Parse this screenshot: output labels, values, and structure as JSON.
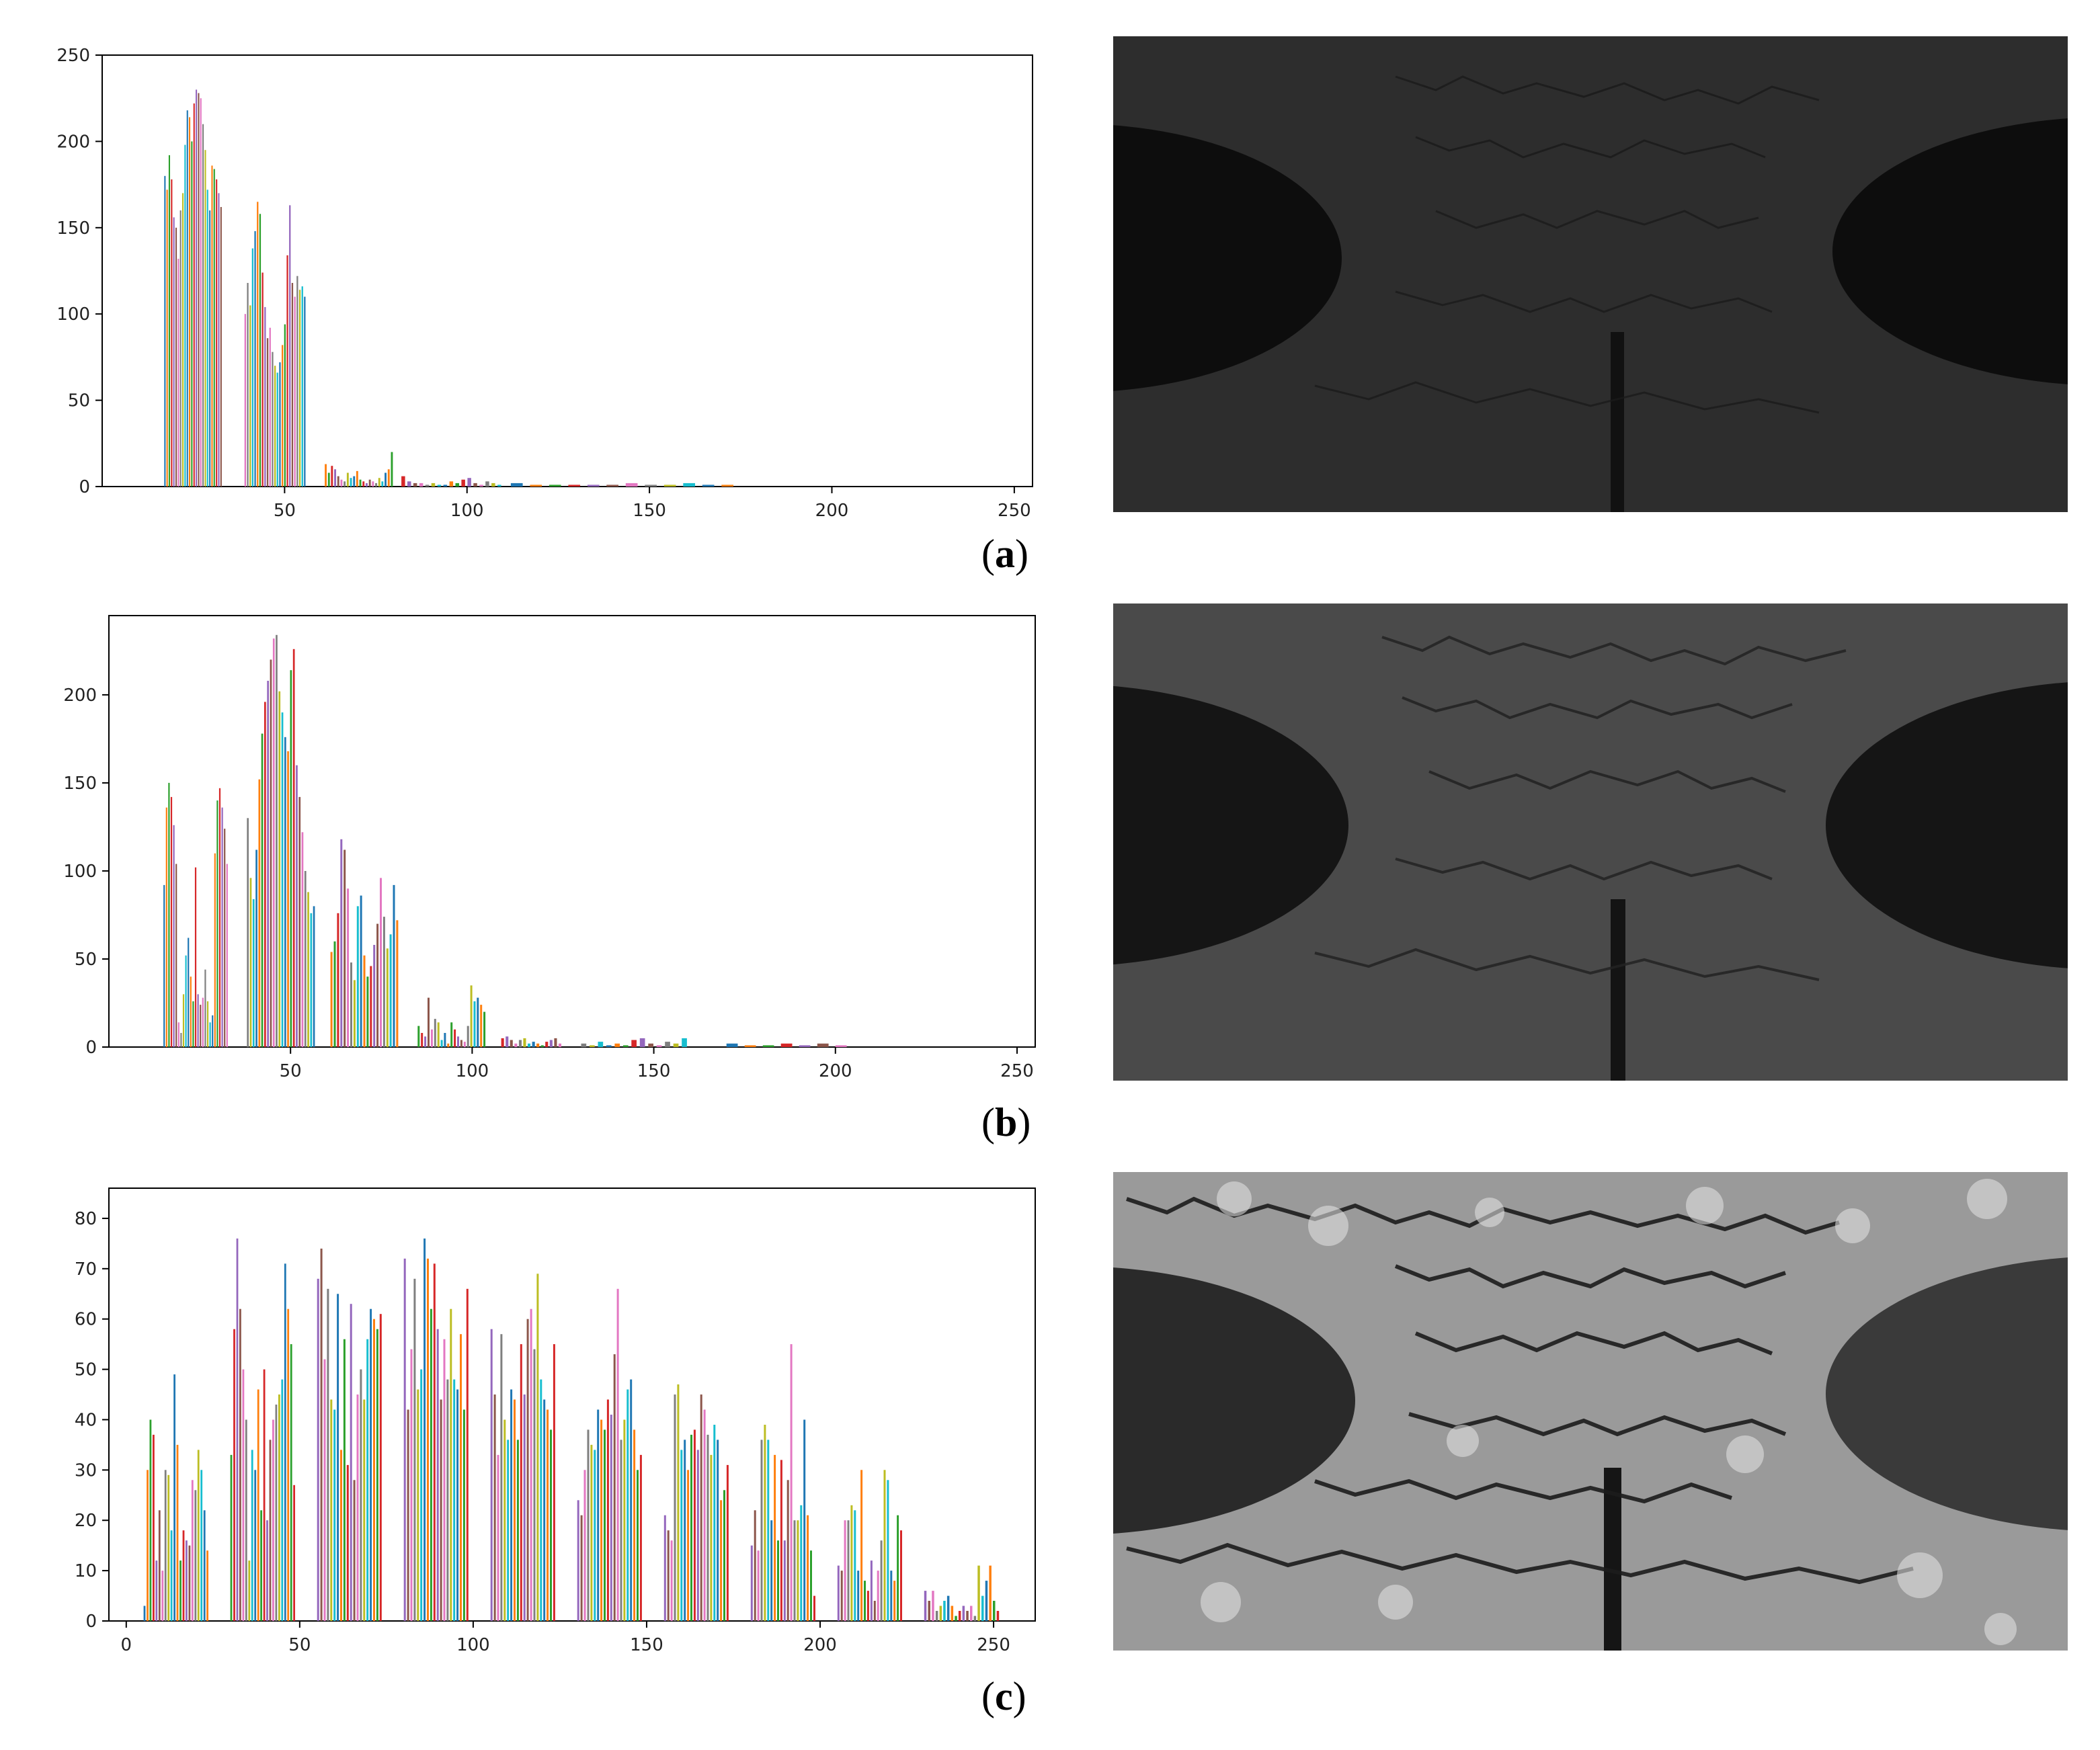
{
  "panels": [
    {
      "id": "a",
      "label": "a",
      "chart_data": {
        "type": "bar",
        "title": "",
        "xlabel": "",
        "ylabel": "",
        "xlim": [
          0,
          255
        ],
        "ylim": [
          0,
          250
        ],
        "xticks": [
          50,
          100,
          150,
          200,
          250
        ],
        "yticks": [
          0,
          50,
          100,
          150,
          200,
          250
        ],
        "grid": false,
        "description_of_series": "grayscale histogram, many narrow multicolored bars per bin cluster",
        "clusters": [
          {
            "x_start": 17,
            "x_end": 33,
            "values": [
              180,
              172,
              192,
              178,
              156,
              150,
              132,
              160,
              170,
              198,
              218,
              214,
              200,
              222,
              230,
              228,
              225,
              210,
              195,
              172,
              160,
              186,
              184,
              178,
              170,
              162
            ]
          },
          {
            "x_start": 39,
            "x_end": 56,
            "values": [
              100,
              118,
              105,
              138,
              148,
              165,
              158,
              124,
              104,
              86,
              92,
              78,
              70,
              66,
              72,
              82,
              94,
              134,
              163,
              118,
              110,
              122,
              114,
              116,
              110
            ]
          },
          {
            "x_start": 61,
            "x_end": 80,
            "values": [
              13,
              8,
              12,
              10,
              6,
              4,
              3,
              8,
              5,
              6,
              9,
              4,
              3,
              2,
              4,
              3,
              2,
              5,
              3,
              8,
              10,
              20
            ]
          },
          {
            "x_start": 82,
            "x_end": 110,
            "values": [
              6,
              3,
              2,
              2,
              1,
              2,
              1,
              1,
              3,
              2,
              4,
              5,
              2,
              1,
              3,
              2,
              1
            ]
          },
          {
            "x_start": 112,
            "x_end": 175,
            "values": [
              2,
              1,
              1,
              1,
              1,
              1,
              2,
              1,
              1,
              2,
              1,
              1
            ]
          }
        ]
      },
      "image_name": "grayscale-photo-original"
    },
    {
      "id": "b",
      "label": "b",
      "chart_data": {
        "type": "bar",
        "title": "",
        "xlabel": "",
        "ylabel": "",
        "xlim": [
          0,
          255
        ],
        "ylim": [
          0,
          245
        ],
        "xticks": [
          50,
          100,
          150,
          200,
          250
        ],
        "yticks": [
          0,
          50,
          100,
          150,
          200
        ],
        "grid": false,
        "clusters": [
          {
            "x_start": 15,
            "x_end": 33,
            "values": [
              92,
              136,
              150,
              142,
              126,
              104,
              14,
              8,
              30,
              52,
              62,
              40,
              26,
              102,
              30,
              24,
              28,
              44,
              26,
              14,
              18,
              110,
              140,
              147,
              136,
              124,
              104
            ]
          },
          {
            "x_start": 38,
            "x_end": 57,
            "values": [
              130,
              96,
              84,
              112,
              152,
              178,
              196,
              208,
              220,
              232,
              234,
              202,
              190,
              176,
              168,
              214,
              226,
              160,
              142,
              122,
              100,
              88,
              76,
              80
            ]
          },
          {
            "x_start": 61,
            "x_end": 80,
            "values": [
              54,
              60,
              76,
              118,
              112,
              90,
              48,
              38,
              80,
              86,
              52,
              40,
              46,
              58,
              70,
              96,
              74,
              56,
              64,
              92,
              72
            ]
          },
          {
            "x_start": 85,
            "x_end": 104,
            "values": [
              12,
              8,
              6,
              28,
              10,
              16,
              14,
              4,
              8,
              2,
              14,
              10,
              6,
              4,
              3,
              12,
              35,
              26,
              28,
              24,
              20
            ]
          },
          {
            "x_start": 108,
            "x_end": 125,
            "values": [
              5,
              6,
              4,
              2,
              4,
              5,
              2,
              3,
              2,
              1,
              3,
              4,
              5,
              2
            ]
          },
          {
            "x_start": 130,
            "x_end": 160,
            "values": [
              2,
              1,
              3,
              1,
              2,
              1,
              4,
              5,
              2,
              1,
              3,
              2,
              5
            ]
          },
          {
            "x_start": 170,
            "x_end": 205,
            "values": [
              2,
              1,
              1,
              2,
              1,
              2,
              1
            ]
          }
        ]
      },
      "image_name": "grayscale-photo-enhanced"
    },
    {
      "id": "c",
      "label": "c",
      "chart_data": {
        "type": "bar",
        "title": "",
        "xlabel": "",
        "ylabel": "",
        "xlim": [
          -5,
          262
        ],
        "ylim": [
          0,
          86
        ],
        "xticks": [
          0,
          50,
          100,
          150,
          200,
          250
        ],
        "yticks": [
          0,
          10,
          20,
          30,
          40,
          50,
          60,
          70,
          80
        ],
        "grid": false,
        "clusters": [
          {
            "x_start": 5,
            "x_end": 24,
            "values": [
              3,
              30,
              40,
              37,
              12,
              22,
              10,
              30,
              29,
              18,
              49,
              35,
              12,
              18,
              16,
              15,
              28,
              26,
              34,
              30,
              22,
              14
            ]
          },
          {
            "x_start": 30,
            "x_end": 49,
            "values": [
              33,
              58,
              76,
              62,
              50,
              40,
              12,
              34,
              30,
              46,
              22,
              50,
              20,
              36,
              40,
              43,
              45,
              48,
              71,
              62,
              55,
              27
            ]
          },
          {
            "x_start": 55,
            "x_end": 74,
            "values": [
              68,
              74,
              52,
              66,
              44,
              42,
              65,
              34,
              56,
              31,
              63,
              28,
              45,
              50,
              44,
              56,
              62,
              60,
              58,
              61
            ]
          },
          {
            "x_start": 80,
            "x_end": 99,
            "values": [
              72,
              42,
              54,
              68,
              46,
              50,
              76,
              72,
              62,
              71,
              58,
              44,
              56,
              48,
              62,
              48,
              46,
              57,
              42,
              66
            ]
          },
          {
            "x_start": 105,
            "x_end": 124,
            "values": [
              58,
              45,
              33,
              57,
              40,
              36,
              46,
              44,
              36,
              55,
              45,
              60,
              62,
              54,
              69,
              48,
              44,
              42,
              38,
              55
            ]
          },
          {
            "x_start": 130,
            "x_end": 149,
            "values": [
              24,
              21,
              30,
              38,
              35,
              34,
              42,
              40,
              38,
              44,
              41,
              53,
              66,
              36,
              40,
              46,
              48,
              38,
              30,
              33
            ]
          },
          {
            "x_start": 155,
            "x_end": 174,
            "values": [
              21,
              18,
              16,
              45,
              47,
              34,
              36,
              30,
              37,
              38,
              34,
              45,
              42,
              37,
              33,
              39,
              36,
              24,
              26,
              31
            ]
          },
          {
            "x_start": 180,
            "x_end": 199,
            "values": [
              15,
              22,
              14,
              36,
              39,
              36,
              20,
              33,
              16,
              32,
              16,
              28,
              55,
              20,
              20,
              23,
              40,
              21,
              14,
              5
            ]
          },
          {
            "x_start": 205,
            "x_end": 224,
            "values": [
              11,
              10,
              20,
              20,
              23,
              22,
              10,
              30,
              8,
              6,
              12,
              4,
              10,
              16,
              30,
              28,
              10,
              8,
              21,
              18
            ]
          },
          {
            "x_start": 230,
            "x_end": 252,
            "values": [
              6,
              4,
              6,
              2,
              3,
              4,
              5,
              3,
              1,
              2,
              3,
              2,
              3,
              1,
              11,
              5,
              8,
              11,
              4,
              2
            ]
          }
        ]
      },
      "image_name": "grayscale-photo-equalized"
    }
  ],
  "colors": [
    "#1f77b4",
    "#ff7f0e",
    "#2ca02c",
    "#d62728",
    "#9467bd",
    "#8c564b",
    "#e377c2",
    "#7f7f7f",
    "#bcbd22",
    "#17becf"
  ]
}
